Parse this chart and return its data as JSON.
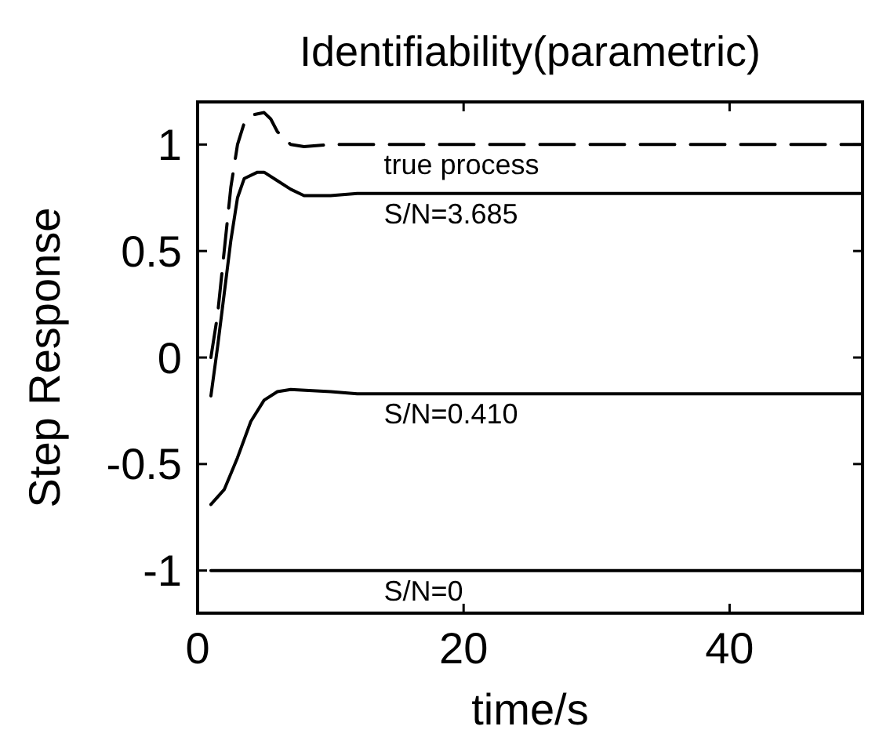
{
  "chart_data": {
    "type": "line",
    "title": "Identifiability(parametric)",
    "xlabel": "time/s",
    "ylabel": "Step Response",
    "xlim": [
      0,
      50
    ],
    "ylim": [
      -1.2,
      1.2
    ],
    "xticks": [
      0,
      20,
      40
    ],
    "yticks": [
      -1,
      -0.5,
      0,
      0.5,
      1
    ],
    "grid": false,
    "marker": "none",
    "series": [
      {
        "name": "true process",
        "color": "#000000",
        "line_style": "dashed",
        "x": [
          1,
          1.5,
          2,
          2.5,
          3,
          3.5,
          4.2,
          5,
          5.5,
          6,
          7,
          8,
          10,
          50
        ],
        "values": [
          0,
          0.2,
          0.5,
          0.8,
          1.0,
          1.1,
          1.14,
          1.15,
          1.12,
          1.06,
          1.0,
          0.99,
          1.0,
          1.0
        ]
      },
      {
        "name": "S/N=3.685",
        "color": "#000000",
        "line_style": "solid",
        "x": [
          1,
          1.5,
          2,
          2.5,
          3,
          3.5,
          4.5,
          5,
          6,
          7,
          8,
          10,
          12,
          50
        ],
        "values": [
          -0.18,
          0.05,
          0.3,
          0.55,
          0.75,
          0.84,
          0.87,
          0.87,
          0.83,
          0.79,
          0.76,
          0.76,
          0.77,
          0.77
        ]
      },
      {
        "name": "S/N=0.410",
        "color": "#000000",
        "line_style": "solid",
        "x": [
          1,
          2,
          3,
          4,
          5,
          6,
          7,
          10,
          12,
          50
        ],
        "values": [
          -0.69,
          -0.62,
          -0.47,
          -0.3,
          -0.2,
          -0.16,
          -0.15,
          -0.16,
          -0.17,
          -0.17
        ]
      },
      {
        "name": "S/N=0",
        "color": "#000000",
        "line_style": "solid",
        "x": [
          1,
          50
        ],
        "values": [
          -1,
          -1
        ]
      }
    ]
  }
}
